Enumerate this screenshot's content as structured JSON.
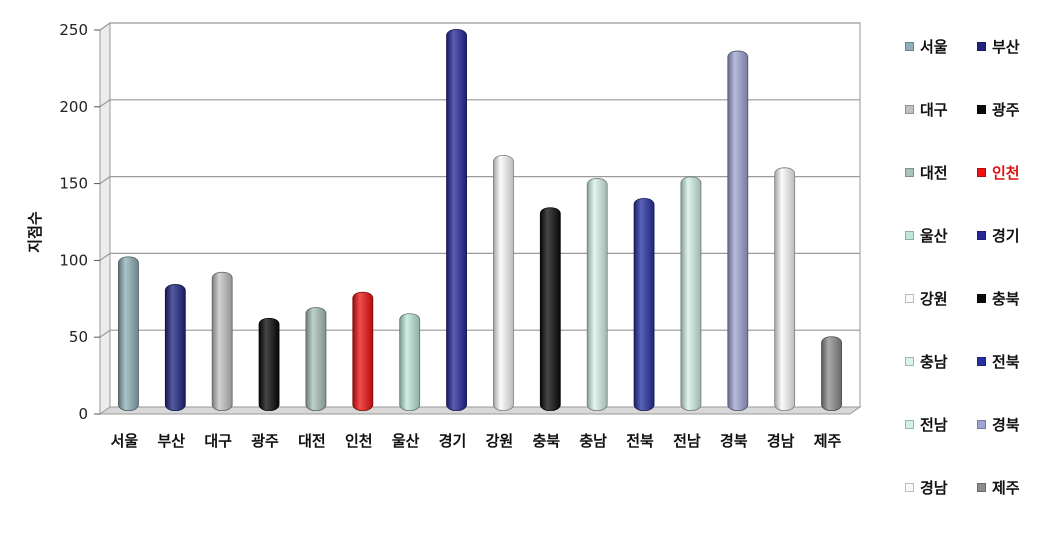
{
  "chart_data": {
    "type": "bar",
    "title": "",
    "xlabel": "",
    "ylabel": "지점수",
    "ylim": [
      0,
      250
    ],
    "yticks": [
      0,
      50,
      100,
      150,
      200,
      250
    ],
    "grid": true,
    "legend_position": "right",
    "categories": [
      "서울",
      "부산",
      "대구",
      "광주",
      "대전",
      "인천",
      "울산",
      "경기",
      "강원",
      "충북",
      "충남",
      "전북",
      "전남",
      "경북",
      "경남",
      "제주"
    ],
    "values": [
      100,
      82,
      90,
      60,
      67,
      77,
      63,
      248,
      166,
      132,
      151,
      138,
      152,
      234,
      158,
      48
    ],
    "colors": [
      "#8fb0b8",
      "#1f2380",
      "#c2c2c2",
      "#080808",
      "#a9c2bb",
      "#ee1111",
      "#bfe8dc",
      "#26269a",
      "#fafafa",
      "#0a0a0a",
      "#d8f3ea",
      "#2630a0",
      "#d2f1e6",
      "#9ea4d4",
      "#fafafa",
      "#8c8c8c"
    ],
    "legend_colors": {
      "인천": "#dd1111"
    }
  }
}
